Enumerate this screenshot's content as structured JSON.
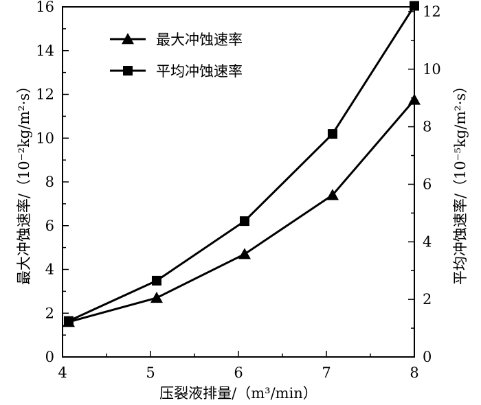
{
  "chart_data": {
    "type": "line",
    "xlabel": "压裂液排量/（m³/min）",
    "ylabel_left": "最大冲蚀速率/（10⁻²kg/m²·s）",
    "ylabel_right": "平均冲蚀速率/（10⁻⁵kg/m²·s）",
    "x_ticks": [
      "4",
      "5",
      "6",
      "7",
      "8"
    ],
    "y_left_ticks": [
      "0",
      "2",
      "4",
      "6",
      "8",
      "10",
      "12",
      "14",
      "16"
    ],
    "y_right_ticks": [
      "0",
      "2",
      "4",
      "6",
      "8",
      "10",
      "12"
    ],
    "xlim": [
      4,
      8
    ],
    "ylim_left": [
      0,
      16
    ],
    "ylim_right": [
      0,
      12.165
    ],
    "legend_position": "top-left",
    "series": [
      {
        "name": "最大冲蚀速率",
        "axis": "left",
        "marker": "triangle",
        "x": [
          4.07,
          5.07,
          6.07,
          7.07,
          8.0
        ],
        "y": [
          1.6,
          2.7,
          4.7,
          7.4,
          11.75
        ]
      },
      {
        "name": "平均冲蚀速率",
        "axis": "right",
        "marker": "square",
        "x": [
          4.07,
          5.07,
          6.07,
          7.07,
          8.0
        ],
        "y": [
          1.25,
          2.65,
          4.72,
          7.75,
          12.2
        ]
      }
    ]
  }
}
